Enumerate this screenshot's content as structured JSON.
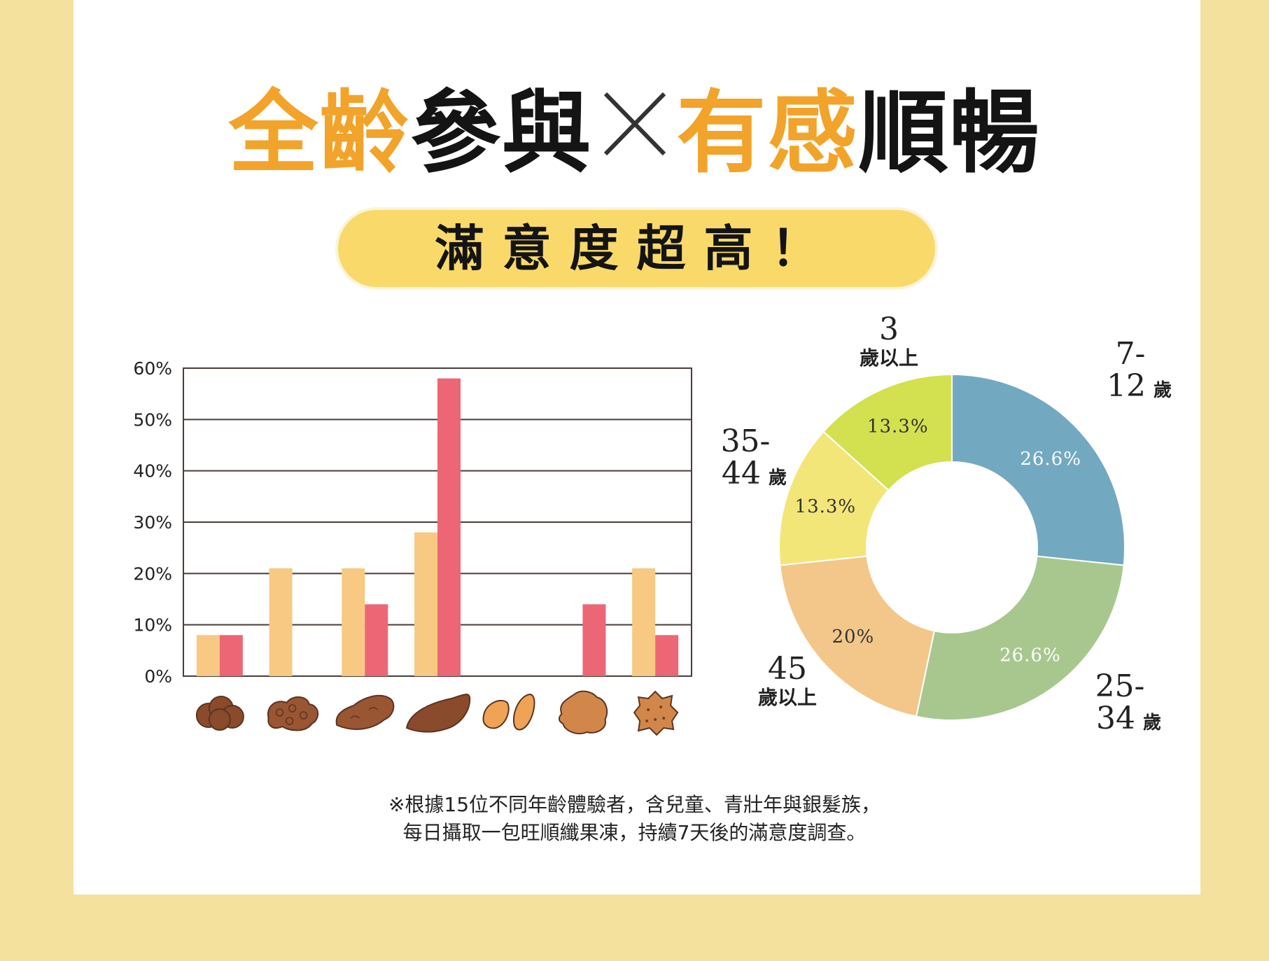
{
  "title": {
    "part1": "全齡",
    "part2": "參與",
    "part3": "有感",
    "part4": "順暢",
    "accent": "#f2a32a"
  },
  "subtitle": "滿意度超高！",
  "footnote": {
    "line1": "※根據15位不同年齡體驗者，含兒童、青壯年與銀髮族，",
    "line2": "每日攝取一包旺順纖果凍，持續7天後的滿意度調查。"
  },
  "chart_data": [
    {
      "type": "bar",
      "ylim": [
        0,
        60
      ],
      "yticks": [
        0,
        10,
        20,
        30,
        40,
        50,
        60
      ],
      "ytick_labels": [
        "0%",
        "10%",
        "20%",
        "30%",
        "40%",
        "50%",
        "60%"
      ],
      "grid": true,
      "categories": [
        "stool-type-1-icon",
        "stool-type-2-icon",
        "stool-type-3-icon",
        "stool-type-4-icon",
        "stool-type-5-icon",
        "stool-type-6-icon",
        "stool-type-7-icon"
      ],
      "series": [
        {
          "color": "#f8c982",
          "values": [
            8,
            21,
            21,
            28,
            0,
            0,
            21
          ]
        },
        {
          "color": "#ec6676",
          "values": [
            8,
            0,
            14,
            58,
            0,
            14,
            8
          ]
        }
      ]
    },
    {
      "type": "pie",
      "donut": true,
      "slices": [
        {
          "label_top": "7-",
          "label_num": "12",
          "label_unit": "歲",
          "value": 26.6,
          "display": "26.6%",
          "color": "#72a9c0"
        },
        {
          "label_top": "25-",
          "label_num": "34",
          "label_unit": "歲",
          "value": 26.6,
          "display": "26.6%",
          "color": "#a8c78f"
        },
        {
          "label_top": "45",
          "label_num": "",
          "label_unit": "歲以上",
          "value": 20,
          "display": "20%",
          "color": "#f2c789"
        },
        {
          "label_top": "35-",
          "label_num": "44",
          "label_unit": "歲",
          "value": 13.3,
          "display": "13.3%",
          "color": "#f2e679"
        },
        {
          "label_top": "3",
          "label_num": "",
          "label_unit": "歲以上",
          "value": 13.3,
          "display": "13.3%",
          "color": "#d3e050"
        }
      ]
    }
  ]
}
